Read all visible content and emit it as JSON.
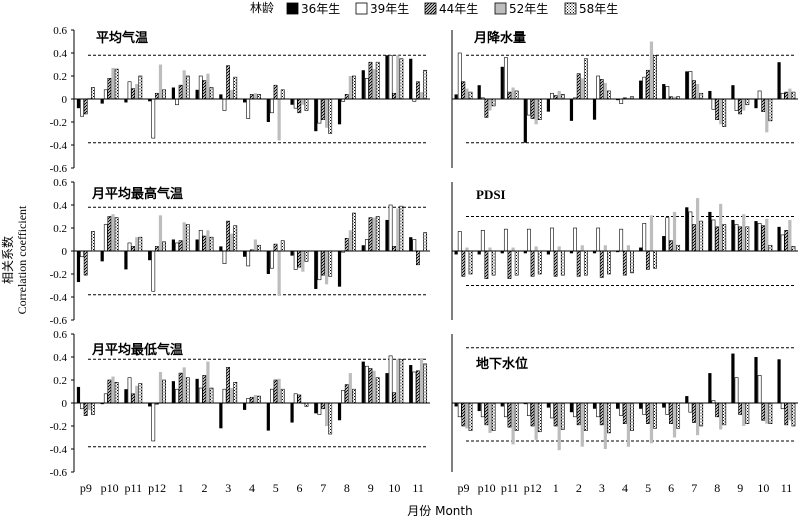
{
  "legend": {
    "title": "林龄",
    "items": [
      {
        "label": "36年生",
        "pattern": "black"
      },
      {
        "label": "39年生",
        "pattern": "white"
      },
      {
        "label": "44年生",
        "pattern": "hatch"
      },
      {
        "label": "52年生",
        "pattern": "gray"
      },
      {
        "label": "58年生",
        "pattern": "dots"
      }
    ]
  },
  "ylabel_cn": "相关系数",
  "ylabel_en": "Correlation coefficient",
  "xlabel": "月份 Month",
  "months": [
    "p9",
    "p10",
    "p11",
    "p12",
    "1",
    "2",
    "3",
    "4",
    "5",
    "6",
    "7",
    "8",
    "9",
    "10",
    "11"
  ],
  "chart_data": [
    {
      "type": "bar",
      "title": "平均气温",
      "ylim": [
        -0.6,
        0.6
      ],
      "yticks": [
        "0.6",
        "0.4",
        "0.2",
        "0",
        "-0.2",
        "-0.4",
        "-0.6"
      ],
      "threshold": 0.38,
      "categories": [
        "p9",
        "p10",
        "p11",
        "p12",
        "1",
        "2",
        "3",
        "4",
        "5",
        "6",
        "7",
        "8",
        "9",
        "10",
        "11"
      ],
      "series": [
        {
          "name": "36年生",
          "values": [
            -0.08,
            -0.04,
            -0.03,
            -0.02,
            0.1,
            0.08,
            0.04,
            -0.03,
            -0.2,
            -0.05,
            -0.28,
            -0.22,
            0.25,
            0.38,
            0.35
          ]
        },
        {
          "name": "39年生",
          "values": [
            -0.15,
            0.08,
            0.15,
            -0.34,
            -0.05,
            0.2,
            -0.1,
            -0.17,
            -0.12,
            -0.08,
            -0.21,
            -0.02,
            0.18,
            0.38,
            -0.02
          ]
        },
        {
          "name": "44年生",
          "values": [
            -0.13,
            0.18,
            0.09,
            0.05,
            0.12,
            0.16,
            0.29,
            0.04,
            0.12,
            -0.12,
            -0.18,
            0.04,
            0.32,
            0.05,
            0.15
          ]
        },
        {
          "name": "52年生",
          "values": [
            0.01,
            0.27,
            0.13,
            0.3,
            0.25,
            0.22,
            0.08,
            0.05,
            -0.36,
            -0.05,
            -0.25,
            0.2,
            0.26,
            0.38,
            0.06
          ]
        },
        {
          "name": "58年生",
          "values": [
            0.1,
            0.26,
            0.2,
            0.08,
            0.2,
            0.1,
            0.19,
            0.04,
            0.08,
            -0.1,
            -0.3,
            0.2,
            0.32,
            0.35,
            0.25
          ]
        }
      ]
    },
    {
      "type": "bar",
      "title": "月降水量",
      "ylim": [
        -0.6,
        0.6
      ],
      "yticks": [
        "0.6",
        "0.4",
        "0.2",
        "0",
        "-0.2",
        "-0.4",
        "-0.6"
      ],
      "threshold": 0.38,
      "categories": [
        "p9",
        "p10",
        "p11",
        "p12",
        "1",
        "2",
        "3",
        "4",
        "5",
        "6",
        "7",
        "8",
        "9",
        "10",
        "11"
      ],
      "series": [
        {
          "name": "36年生",
          "values": [
            0.04,
            0.12,
            0.28,
            -0.38,
            -0.11,
            -0.19,
            -0.18,
            -0.01,
            0.16,
            0.13,
            0.24,
            0.07,
            0.12,
            -0.08,
            0.32
          ]
        },
        {
          "name": "39年生",
          "values": [
            0.4,
            0.01,
            0.36,
            -0.14,
            0.05,
            0.01,
            0.2,
            -0.04,
            0.19,
            0.11,
            0.24,
            -0.09,
            -0.1,
            0.07,
            0.05
          ]
        },
        {
          "name": "44年生",
          "values": [
            0.15,
            -0.16,
            0.06,
            -0.17,
            0.03,
            0.22,
            0.17,
            0.01,
            0.25,
            0.02,
            0.16,
            -0.18,
            -0.13,
            -0.11,
            0.06
          ]
        },
        {
          "name": "52年生",
          "values": [
            0.09,
            -0.1,
            0.1,
            -0.22,
            0.07,
            0.18,
            0.14,
            0.01,
            0.5,
            0.02,
            0.13,
            -0.22,
            -0.1,
            -0.29,
            0.09
          ]
        },
        {
          "name": "58年生",
          "values": [
            0.06,
            -0.06,
            0.07,
            -0.18,
            0.04,
            0.35,
            0.07,
            0.02,
            0.38,
            0.02,
            0.05,
            -0.24,
            -0.05,
            -0.19,
            0.06
          ]
        }
      ]
    },
    {
      "type": "bar",
      "title": "月平均最高气温",
      "ylim": [
        -0.6,
        0.6
      ],
      "yticks": [
        "0.6",
        "0.4",
        "0.2",
        "0",
        "-0.2",
        "-0.4",
        "-0.6"
      ],
      "threshold": 0.38,
      "categories": [
        "p9",
        "p10",
        "p11",
        "p12",
        "1",
        "2",
        "3",
        "4",
        "5",
        "6",
        "7",
        "8",
        "9",
        "10",
        "11"
      ],
      "series": [
        {
          "name": "36年生",
          "values": [
            -0.27,
            -0.09,
            -0.16,
            -0.08,
            0.1,
            0.1,
            0.04,
            -0.05,
            -0.2,
            -0.04,
            -0.33,
            -0.31,
            0.05,
            0.27,
            0.12
          ]
        },
        {
          "name": "39年生",
          "values": [
            -0.05,
            0.23,
            0.07,
            -0.35,
            0.07,
            0.18,
            -0.11,
            -0.13,
            -0.15,
            -0.16,
            -0.25,
            -0.01,
            0.1,
            0.4,
            0.1
          ]
        },
        {
          "name": "44年生",
          "values": [
            -0.21,
            0.3,
            0.04,
            0.04,
            0.09,
            0.13,
            0.26,
            0.01,
            0.06,
            -0.14,
            -0.21,
            0.11,
            0.29,
            0.04,
            -0.12
          ]
        },
        {
          "name": "52年生",
          "values": [
            0.0,
            0.32,
            0.12,
            0.31,
            0.25,
            0.18,
            0.15,
            0.1,
            -0.39,
            -0.18,
            -0.29,
            0.18,
            0.29,
            0.37,
            0.0
          ]
        },
        {
          "name": "58年生",
          "values": [
            0.17,
            0.29,
            0.12,
            0.08,
            0.23,
            0.12,
            0.22,
            0.05,
            0.09,
            -0.09,
            -0.22,
            0.33,
            0.3,
            0.39,
            0.16
          ]
        }
      ]
    },
    {
      "type": "bar",
      "title": "PDSI",
      "ylim": [
        -0.6,
        0.6
      ],
      "yticks": [
        "0.6",
        "0.4",
        "0.2",
        "0",
        "-0.2",
        "-0.4",
        "-0.6"
      ],
      "threshold": 0.3,
      "categories": [
        "p9",
        "p10",
        "p11",
        "p12",
        "1",
        "2",
        "3",
        "4",
        "5",
        "6",
        "7",
        "8",
        "9",
        "10",
        "11"
      ],
      "series": [
        {
          "name": "36年生",
          "values": [
            -0.03,
            -0.03,
            -0.02,
            -0.02,
            -0.03,
            -0.02,
            -0.02,
            -0.01,
            0.03,
            0.13,
            0.38,
            0.34,
            0.27,
            0.26,
            0.21
          ]
        },
        {
          "name": "39年生",
          "values": [
            0.17,
            0.18,
            0.19,
            0.19,
            0.2,
            0.2,
            0.2,
            0.19,
            0.24,
            0.29,
            0.34,
            0.27,
            0.23,
            0.24,
            0.14
          ]
        },
        {
          "name": "44年生",
          "values": [
            -0.22,
            -0.24,
            -0.24,
            -0.22,
            -0.22,
            -0.22,
            -0.23,
            -0.21,
            -0.16,
            0.09,
            0.23,
            0.21,
            0.21,
            0.22,
            0.18
          ]
        },
        {
          "name": "52年生",
          "values": [
            0.03,
            0.03,
            0.03,
            0.04,
            0.04,
            0.05,
            0.05,
            0.05,
            0.31,
            0.34,
            0.46,
            0.41,
            0.32,
            0.28,
            0.27
          ]
        },
        {
          "name": "58年生",
          "values": [
            -0.2,
            -0.21,
            -0.21,
            -0.2,
            -0.21,
            -0.21,
            -0.2,
            -0.19,
            -0.15,
            0.05,
            0.26,
            0.23,
            0.21,
            0.05,
            0.04
          ]
        }
      ]
    },
    {
      "type": "bar",
      "title": "月平均最低气温",
      "ylim": [
        -0.6,
        0.6
      ],
      "yticks": [
        "0.6",
        "0.4",
        "0.2",
        "0",
        "-0.2",
        "-0.4",
        "-0.6"
      ],
      "threshold": 0.38,
      "categories": [
        "p9",
        "p10",
        "p11",
        "p12",
        "1",
        "2",
        "3",
        "4",
        "5",
        "6",
        "7",
        "8",
        "9",
        "10",
        "11"
      ],
      "series": [
        {
          "name": "36年生",
          "values": [
            0.14,
            -0.01,
            0.12,
            -0.03,
            0.19,
            0.21,
            -0.22,
            -0.06,
            -0.24,
            -0.17,
            -0.09,
            -0.15,
            0.36,
            0.26,
            0.33
          ]
        },
        {
          "name": "39年生",
          "values": [
            -0.05,
            0.08,
            0.22,
            -0.33,
            0.12,
            0.13,
            0.12,
            0.04,
            0.12,
            0.08,
            -0.1,
            0.11,
            0.32,
            0.41,
            0.27
          ]
        },
        {
          "name": "44年生",
          "values": [
            -0.11,
            0.2,
            0.08,
            -0.01,
            0.26,
            0.24,
            0.31,
            0.05,
            0.2,
            0.07,
            -0.05,
            0.16,
            0.3,
            0.09,
            0.28
          ]
        },
        {
          "name": "52年生",
          "values": [
            -0.06,
            0.23,
            0.15,
            0.27,
            0.31,
            0.36,
            0.13,
            0.07,
            0.21,
            -0.01,
            -0.2,
            0.26,
            0.28,
            0.38,
            0.39
          ]
        },
        {
          "name": "58年生",
          "values": [
            -0.1,
            0.18,
            0.17,
            0.2,
            0.22,
            0.13,
            0.18,
            0.06,
            0.12,
            -0.03,
            -0.27,
            0.12,
            0.22,
            0.38,
            0.34
          ]
        }
      ]
    },
    {
      "type": "bar",
      "title": "地下水位",
      "ylim": [
        -0.6,
        0.6
      ],
      "yticks": [],
      "threshold": 0.48,
      "threshold_low": -0.33,
      "categories": [
        "p9",
        "p10",
        "p11",
        "p12",
        "1",
        "2",
        "3",
        "4",
        "5",
        "6",
        "7",
        "8",
        "9",
        "10",
        "11"
      ],
      "series": [
        {
          "name": "36年生",
          "values": [
            -0.03,
            -0.07,
            -0.03,
            -0.01,
            -0.04,
            -0.08,
            -0.05,
            -0.05,
            -0.05,
            -0.04,
            0.06,
            0.26,
            0.43,
            0.4,
            0.38
          ]
        },
        {
          "name": "39年生",
          "values": [
            -0.12,
            -0.12,
            -0.12,
            -0.11,
            -0.13,
            -0.12,
            -0.12,
            -0.11,
            -0.1,
            -0.1,
            -0.08,
            0.02,
            0.22,
            0.24,
            -0.05
          ]
        },
        {
          "name": "44年生",
          "values": [
            -0.2,
            -0.19,
            -0.21,
            -0.2,
            -0.2,
            -0.19,
            -0.19,
            -0.18,
            -0.18,
            -0.18,
            -0.17,
            -0.12,
            -0.1,
            -0.15,
            -0.19
          ]
        },
        {
          "name": "52年生",
          "values": [
            -0.22,
            -0.26,
            -0.36,
            -0.32,
            -0.41,
            -0.38,
            -0.4,
            -0.38,
            -0.35,
            -0.3,
            -0.28,
            -0.23,
            -0.2,
            -0.18,
            -0.15
          ]
        },
        {
          "name": "58年生",
          "values": [
            -0.24,
            -0.24,
            -0.24,
            -0.25,
            -0.23,
            -0.24,
            -0.26,
            -0.24,
            -0.22,
            -0.22,
            -0.2,
            -0.19,
            -0.18,
            -0.18,
            -0.2
          ]
        }
      ]
    }
  ]
}
